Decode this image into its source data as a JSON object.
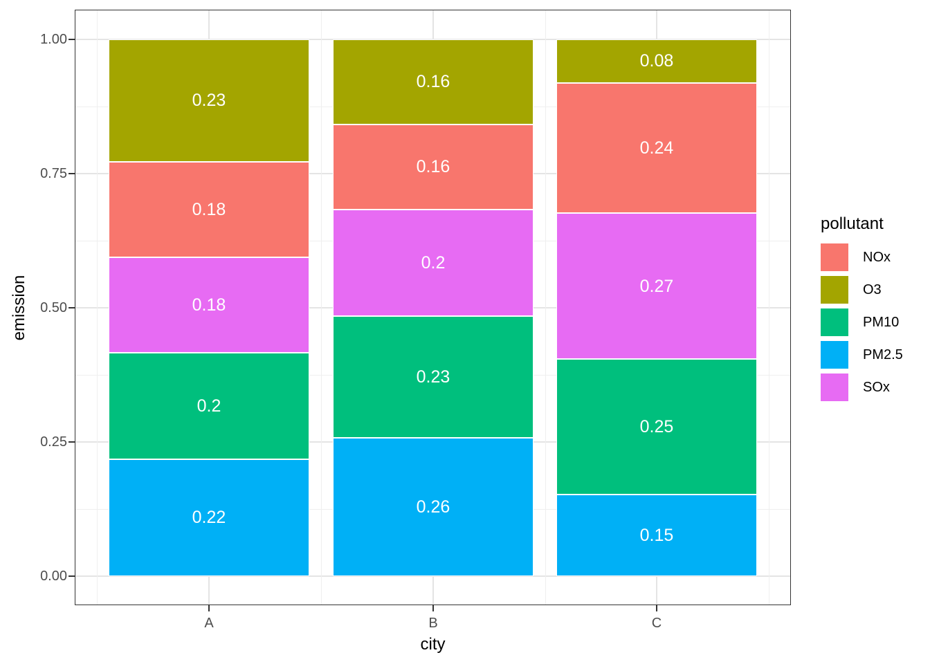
{
  "chart_data": {
    "type": "bar",
    "stacked": true,
    "position": "fill",
    "xlabel": "city",
    "ylabel": "emission",
    "categories": [
      "A",
      "B",
      "C"
    ],
    "series": [
      {
        "name": "NOx",
        "color": "#F8766D",
        "values": [
          0.18,
          0.16,
          0.24
        ]
      },
      {
        "name": "O3",
        "color": "#A3A500",
        "values": [
          0.23,
          0.16,
          0.08
        ]
      },
      {
        "name": "PM10",
        "color": "#00BF7D",
        "values": [
          0.2,
          0.23,
          0.25
        ]
      },
      {
        "name": "PM2.5",
        "color": "#00B0F6",
        "values": [
          0.22,
          0.26,
          0.15
        ]
      },
      {
        "name": "SOx",
        "color": "#E76BF3",
        "values": [
          0.18,
          0.2,
          0.27
        ]
      }
    ],
    "stack_order_bottom_to_top": [
      "PM2.5",
      "PM10",
      "SOx",
      "NOx",
      "O3"
    ],
    "bar_labels_bottom_to_top": {
      "A": [
        "0.22",
        "0.2",
        "0.18",
        "0.18",
        "0.23"
      ],
      "B": [
        "0.26",
        "0.23",
        "0.2",
        "0.16",
        "0.16"
      ],
      "C": [
        "0.15",
        "0.25",
        "0.27",
        "0.24",
        "0.08"
      ]
    },
    "yticks": [
      "0.00",
      "0.25",
      "0.50",
      "0.75",
      "1.00"
    ],
    "ytick_values": [
      0,
      0.25,
      0.5,
      0.75,
      1.0
    ],
    "ylim": [
      0,
      1
    ],
    "grid": "major+minor",
    "legend_title": "pollutant",
    "legend_position": "right",
    "label_text_color": "#FFFFFF"
  },
  "theme": {
    "panel_border_color": "#333333",
    "grid_major_color": "#E4E4E4",
    "grid_minor_color": "#EFEFEF",
    "tick_text_color": "#4D4D4D",
    "background": "#FFFFFF"
  }
}
